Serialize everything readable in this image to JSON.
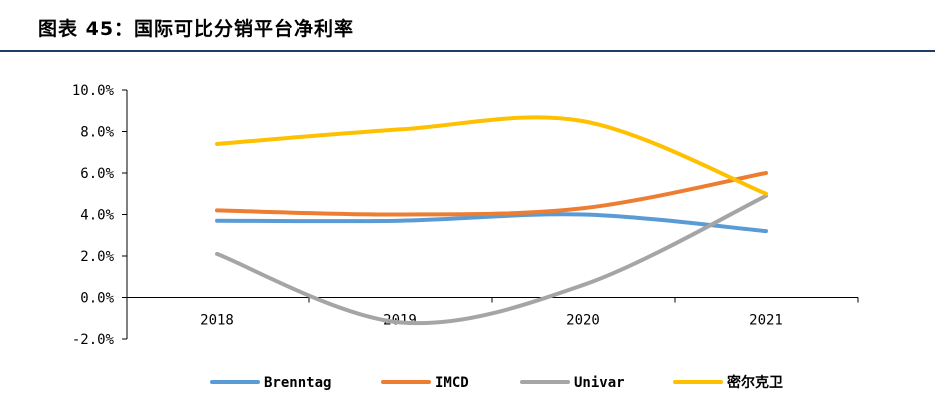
{
  "title": "图表 45：国际可比分销平台净利率",
  "chart_data": {
    "type": "line",
    "categories": [
      "2018",
      "2019",
      "2020",
      "2021"
    ],
    "y_ticks": [
      "10.0%",
      "8.0%",
      "6.0%",
      "4.0%",
      "2.0%",
      "0.0%",
      "-2.0%"
    ],
    "ylim": [
      -2.0,
      10.0
    ],
    "ystep": 2.0,
    "grid": false,
    "legend_position": "bottom",
    "series": [
      {
        "name": "Brenntag",
        "color": "#5b9bd5",
        "values": [
          3.7,
          3.7,
          4.0,
          3.2
        ]
      },
      {
        "name": "IMCD",
        "color": "#ed7d31",
        "values": [
          4.2,
          4.0,
          4.3,
          6.0
        ]
      },
      {
        "name": "Univar",
        "color": "#a5a5a5",
        "values": [
          2.1,
          -1.2,
          0.6,
          4.9
        ]
      },
      {
        "name": "密尔克卫",
        "color": "#ffc000",
        "values": [
          7.4,
          8.1,
          8.5,
          5.0
        ]
      }
    ]
  }
}
